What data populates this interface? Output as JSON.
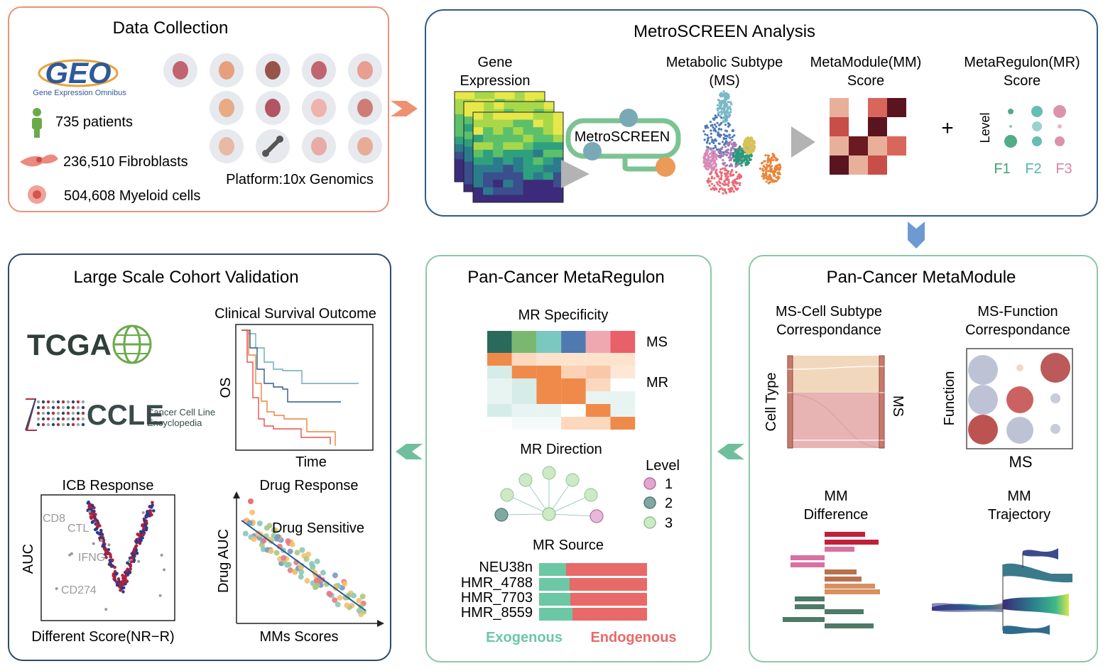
{
  "colors": {
    "panel_orange": "#e8937a",
    "panel_blue": "#2f5a8a",
    "panel_green": "#8cc8a8",
    "exogenous": "#6cc7a5",
    "endogenous": "#e86a68",
    "f1": "#3fa37a",
    "f2": "#55b6ac",
    "f3": "#d787a2"
  },
  "data_collection": {
    "title": "Data Collection",
    "geo_logo": "GEO",
    "geo_subtitle": "Gene Expression Omnibus",
    "patients": "735  patients",
    "fibroblasts": "236,510 Fibroblasts",
    "myeloid": "504,608 Myeloid cells",
    "platform": "Platform:10x Genomics",
    "organ_icons": [
      "kidney-icon",
      "stomach-icon",
      "liver-icon",
      "uterus-icon",
      "lung-icon",
      "pancreas-icon",
      "thyroid-icon",
      "breast-icon",
      "skin-icon",
      "head-icon",
      "bone-icon",
      "intestine-icon",
      "bladder-icon"
    ]
  },
  "metroscreen": {
    "title": "MetroSCREEN Analysis",
    "gene_expression": [
      "Gene",
      "Expression"
    ],
    "tool_label": "MetroSCREEN",
    "subtype": [
      "Metabolic Subtype",
      "(MS)"
    ],
    "mm_score": [
      "MetaModule(MM)",
      "Score"
    ],
    "mr_score": [
      "MetaRegulon(MR)",
      "Score"
    ],
    "plus": "+",
    "level_label": "Level",
    "factors": [
      "F1",
      "F2",
      "F3"
    ]
  },
  "cohort": {
    "title": "Large Scale Cohort Validation",
    "tcga": "TCGA",
    "ccle": "CCLE",
    "ccle_sub": [
      "Cancer Cell Line",
      "Encyclopedia"
    ],
    "survival_title": "Clinical Survival Outcome",
    "survival_y": "OS",
    "survival_x": "Time",
    "icb_title": "ICB Response",
    "icb_y": "AUC",
    "icb_x": "Different Score(NR−R)",
    "icb_genes": [
      "CD8",
      "CTL",
      "IFNG",
      "CD274"
    ],
    "drug_title": "Drug Response",
    "drug_annot": "Drug Sensitive",
    "drug_y": "Drug AUC",
    "drug_x": "MMs Scores"
  },
  "metaregulon": {
    "title": "Pan-Cancer MetaRegulon",
    "spec_title": "MR Specificity",
    "ms_label": "MS",
    "mr_label": "MR",
    "direction_title": "MR Direction",
    "level_title": "Level",
    "levels": [
      "1",
      "2",
      "3"
    ],
    "source_title": "MR Source",
    "sources": [
      "NEU38n",
      "HMR_4788",
      "HMR_7703",
      "HMR_8559"
    ],
    "exogenous": "Exogenous",
    "endogenous": "Endogenous"
  },
  "metamodule": {
    "title": "Pan-Cancer MetaModule",
    "cell_title": [
      "MS-Cell Subtype",
      "Correspondance"
    ],
    "func_title": [
      "MS-Function",
      "Correspondance"
    ],
    "cell_type_label": "Cell Type",
    "ms_label": "MS",
    "function_label": "Function",
    "ms_x_label": "MS",
    "diff_title": [
      "MM",
      "Difference"
    ],
    "traj_title": [
      "MM",
      "Trajectory"
    ]
  }
}
